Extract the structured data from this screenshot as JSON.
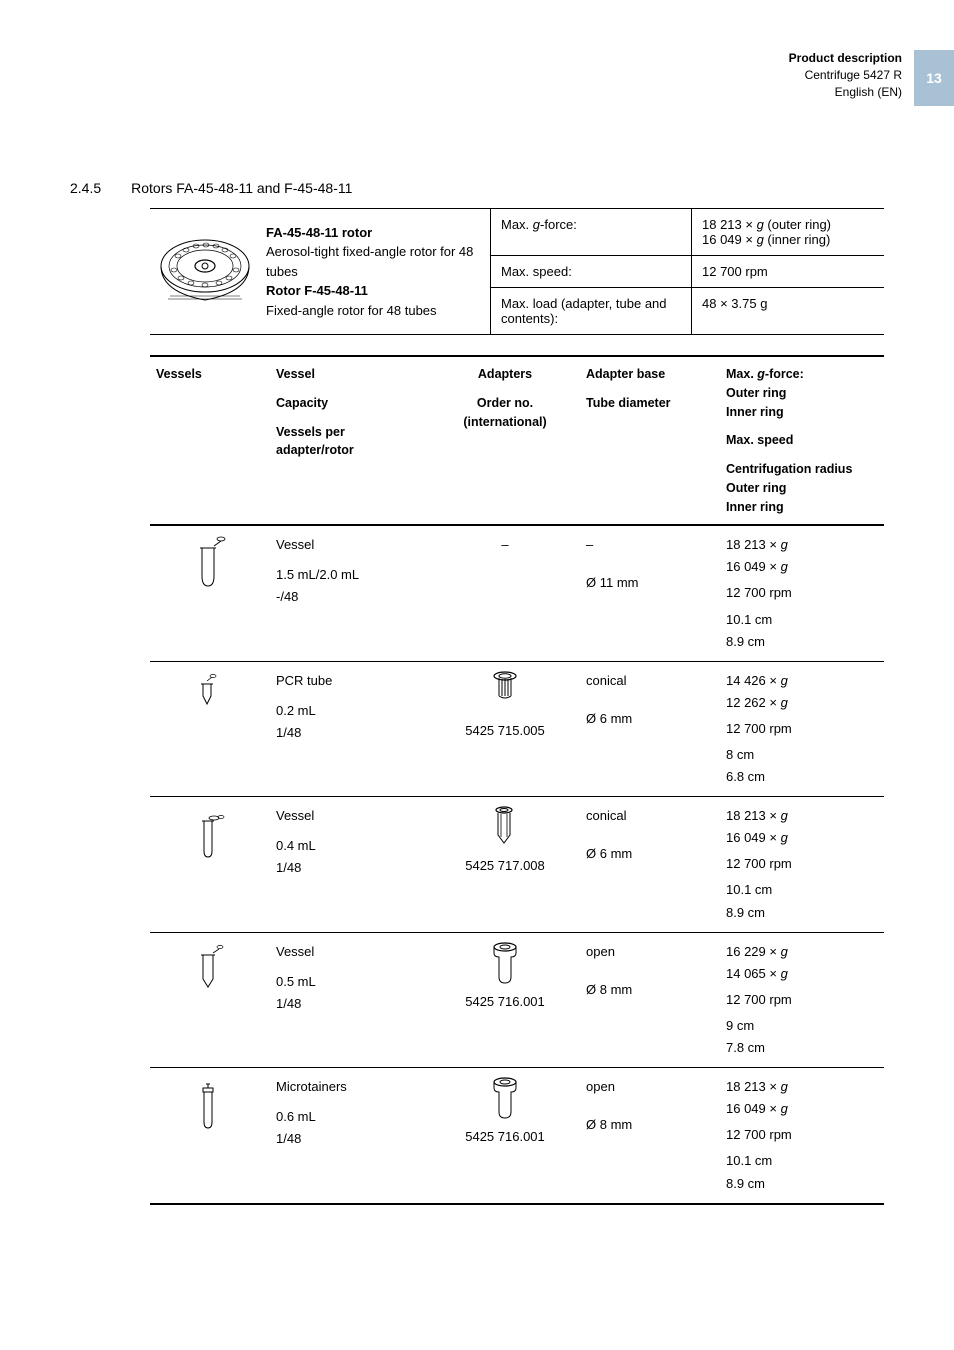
{
  "header": {
    "title": "Product description",
    "subtitle": "Centrifuge 5427 R",
    "lang": "English (EN)",
    "page_number": "13"
  },
  "section": {
    "number": "2.4.5",
    "title": "Rotors FA-45-48-11 and F-45-48-11"
  },
  "summary": {
    "desc_line1_bold": "FA-45-48-11 rotor",
    "desc_line2": "Aerosol-tight fixed-angle rotor for 48 tubes",
    "desc_line3_bold": "Rotor F-45-48-11",
    "desc_line4": "Fixed-angle rotor for 48 tubes",
    "specs": [
      {
        "label_pre": "Max. ",
        "label_ital": "g",
        "label_post": "-force:",
        "value_pre": "18 213 × ",
        "value_ital": "g",
        "value_post": " (outer ring)",
        "value2_pre": "16 049 × ",
        "value2_ital": "g",
        "value2_post": " (inner ring)"
      },
      {
        "label": "Max. speed:",
        "value": "12 700 rpm"
      },
      {
        "label": "Max. load (adapter, tube and contents):",
        "value": "48 × 3.75 g"
      }
    ]
  },
  "table": {
    "headers": {
      "c1": "Vessels",
      "c2a": "Vessel",
      "c2b": "Capacity",
      "c2c": "Vessels per adapter/rotor",
      "c3a": "Adapters",
      "c3b": "Order no. (international)",
      "c4a": "Adapter base",
      "c4b": "Tube diameter",
      "c5a_pre": "Max. ",
      "c5a_ital": "g",
      "c5a_post": "-force:",
      "c5a_l2": "Outer ring",
      "c5a_l3": "Inner ring",
      "c5b": "Max. speed",
      "c5c": "Centrifugation radius",
      "c5c_l2": "Outer ring",
      "c5c_l3": "Inner ring"
    },
    "rows": [
      {
        "vessel_type": "Vessel",
        "capacity": "1.5 mL/2.0 mL",
        "per": "-/48",
        "order_no": "–",
        "adapter_icon": "none",
        "base": "–",
        "diameter": "Ø 11 mm",
        "g_outer": "18 213 × ",
        "g_inner": "16 049 × ",
        "speed": "12 700 rpm",
        "r_outer": "10.1 cm",
        "r_inner": "8.9 cm",
        "vessel_icon": "tube_large"
      },
      {
        "vessel_type": "PCR tube",
        "capacity": "0.2 mL",
        "per": "1/48",
        "order_no": "5425 715.005",
        "adapter_icon": "adapter_a",
        "base": "conical",
        "diameter": "Ø 6 mm",
        "g_outer": "14 426 × ",
        "g_inner": "12 262 × ",
        "speed": "12 700 rpm",
        "r_outer": "8 cm",
        "r_inner": "6.8 cm",
        "vessel_icon": "tube_pcr"
      },
      {
        "vessel_type": "Vessel",
        "capacity": "0.4 mL",
        "per": "1/48",
        "order_no": "5425 717.008",
        "adapter_icon": "adapter_b",
        "base": "conical",
        "diameter": "Ø 6 mm",
        "g_outer": "18 213 × ",
        "g_inner": "16 049 × ",
        "speed": "12 700 rpm",
        "r_outer": "10.1 cm",
        "r_inner": "8.9 cm",
        "vessel_icon": "tube_04"
      },
      {
        "vessel_type": "Vessel",
        "capacity": "0.5 mL",
        "per": "1/48",
        "order_no": "5425 716.001",
        "adapter_icon": "adapter_c",
        "base": "open",
        "diameter": "Ø 8 mm",
        "g_outer": "16 229 × ",
        "g_inner": "14 065 × ",
        "speed": "12 700 rpm",
        "r_outer": "9 cm",
        "r_inner": "7.8 cm",
        "vessel_icon": "tube_05"
      },
      {
        "vessel_type": "Microtainers",
        "capacity": "0.6 mL",
        "per": "1/48",
        "order_no": "5425 716.001",
        "adapter_icon": "adapter_c",
        "base": "open",
        "diameter": "Ø 8 mm",
        "g_outer": "18 213 × ",
        "g_inner": "16 049 × ",
        "speed": "12 700 rpm",
        "r_outer": "10.1 cm",
        "r_inner": "8.9 cm",
        "vessel_icon": "tube_micro"
      }
    ]
  },
  "colors": {
    "page_num_bg": "#a8c1d4",
    "text": "#000000",
    "border": "#000000"
  }
}
